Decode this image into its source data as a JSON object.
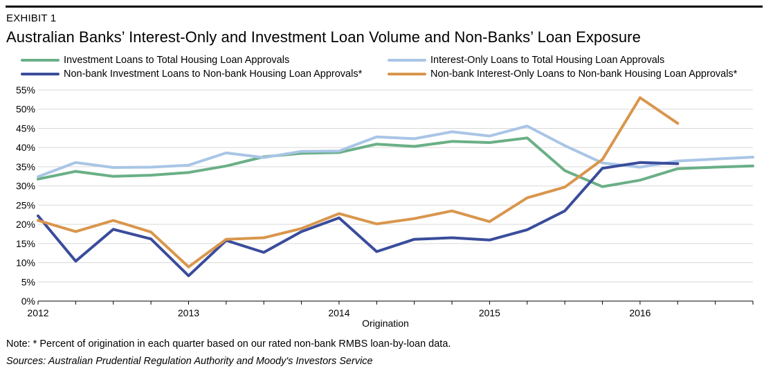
{
  "exhibit_label": "EXHIBIT 1",
  "title": "Australian Banks’ Interest-Only and Investment Loan Volume and Non-Banks’ Loan Exposure",
  "note": "Note: * Percent of origination in each quarter based on our rated non-bank RMBS loan-by-loan data.",
  "sources": "Sources: Australian Prudential Regulation Authority and Moody's Investors Service",
  "chart_data": {
    "type": "line",
    "title": "Australian Banks’ Interest-Only and Investment Loan Volume and Non-Banks’ Loan Exposure",
    "xlabel": "Origination",
    "ylabel": "",
    "x": [
      2012.0,
      2012.25,
      2012.5,
      2012.75,
      2013.0,
      2013.25,
      2013.5,
      2013.75,
      2014.0,
      2014.25,
      2014.5,
      2014.75,
      2015.0,
      2015.25,
      2015.5,
      2015.75,
      2016.0,
      2016.25,
      2016.5,
      2016.75
    ],
    "xlim": [
      2012.0,
      2016.75
    ],
    "ylim": [
      0,
      55
    ],
    "x_ticks": [
      "2012",
      "2013",
      "2014",
      "2015",
      "2016"
    ],
    "y_ticks": [
      "0%",
      "5%",
      "10%",
      "15%",
      "20%",
      "25%",
      "30%",
      "35%",
      "40%",
      "45%",
      "50%",
      "55%"
    ],
    "grid": "horizontal",
    "legend": "top",
    "series": [
      {
        "name": "Investment Loans to Total Housing Loan Approvals",
        "color": "#6aaf86",
        "values": [
          31.8,
          33.8,
          32.5,
          32.8,
          33.5,
          35.2,
          37.6,
          38.5,
          38.7,
          40.9,
          40.3,
          41.6,
          41.3,
          42.5,
          34.0,
          29.8,
          31.5,
          34.5,
          34.9,
          35.2
        ]
      },
      {
        "name": "Interest-Only Loans  to Total Housing Loan Approvals",
        "color": "#a9c5e6",
        "values": [
          32.4,
          36.1,
          34.8,
          34.9,
          35.4,
          38.6,
          37.4,
          39.0,
          39.1,
          42.8,
          42.3,
          44.1,
          43.0,
          45.6,
          40.5,
          36.0,
          34.9,
          36.5,
          37.0,
          37.5
        ]
      },
      {
        "name": "Non-bank Investment Loans to Non-bank Housing Loan Approvals*",
        "color": "#3a4c9b",
        "values": [
          22.2,
          10.4,
          18.7,
          16.2,
          6.6,
          15.8,
          12.7,
          18.1,
          21.7,
          12.9,
          16.1,
          16.5,
          15.9,
          18.6,
          23.5,
          34.6,
          36.1,
          35.8,
          null,
          null
        ]
      },
      {
        "name": "Non-bank Interest-Only Loans to Non-bank Housing Loan Approvals*",
        "color": "#d9964d",
        "values": [
          21.0,
          18.1,
          21.0,
          18.0,
          8.9,
          16.1,
          16.5,
          18.9,
          22.8,
          20.1,
          21.5,
          23.5,
          20.7,
          26.9,
          29.7,
          36.9,
          53.0,
          46.3,
          null,
          null
        ]
      }
    ]
  }
}
